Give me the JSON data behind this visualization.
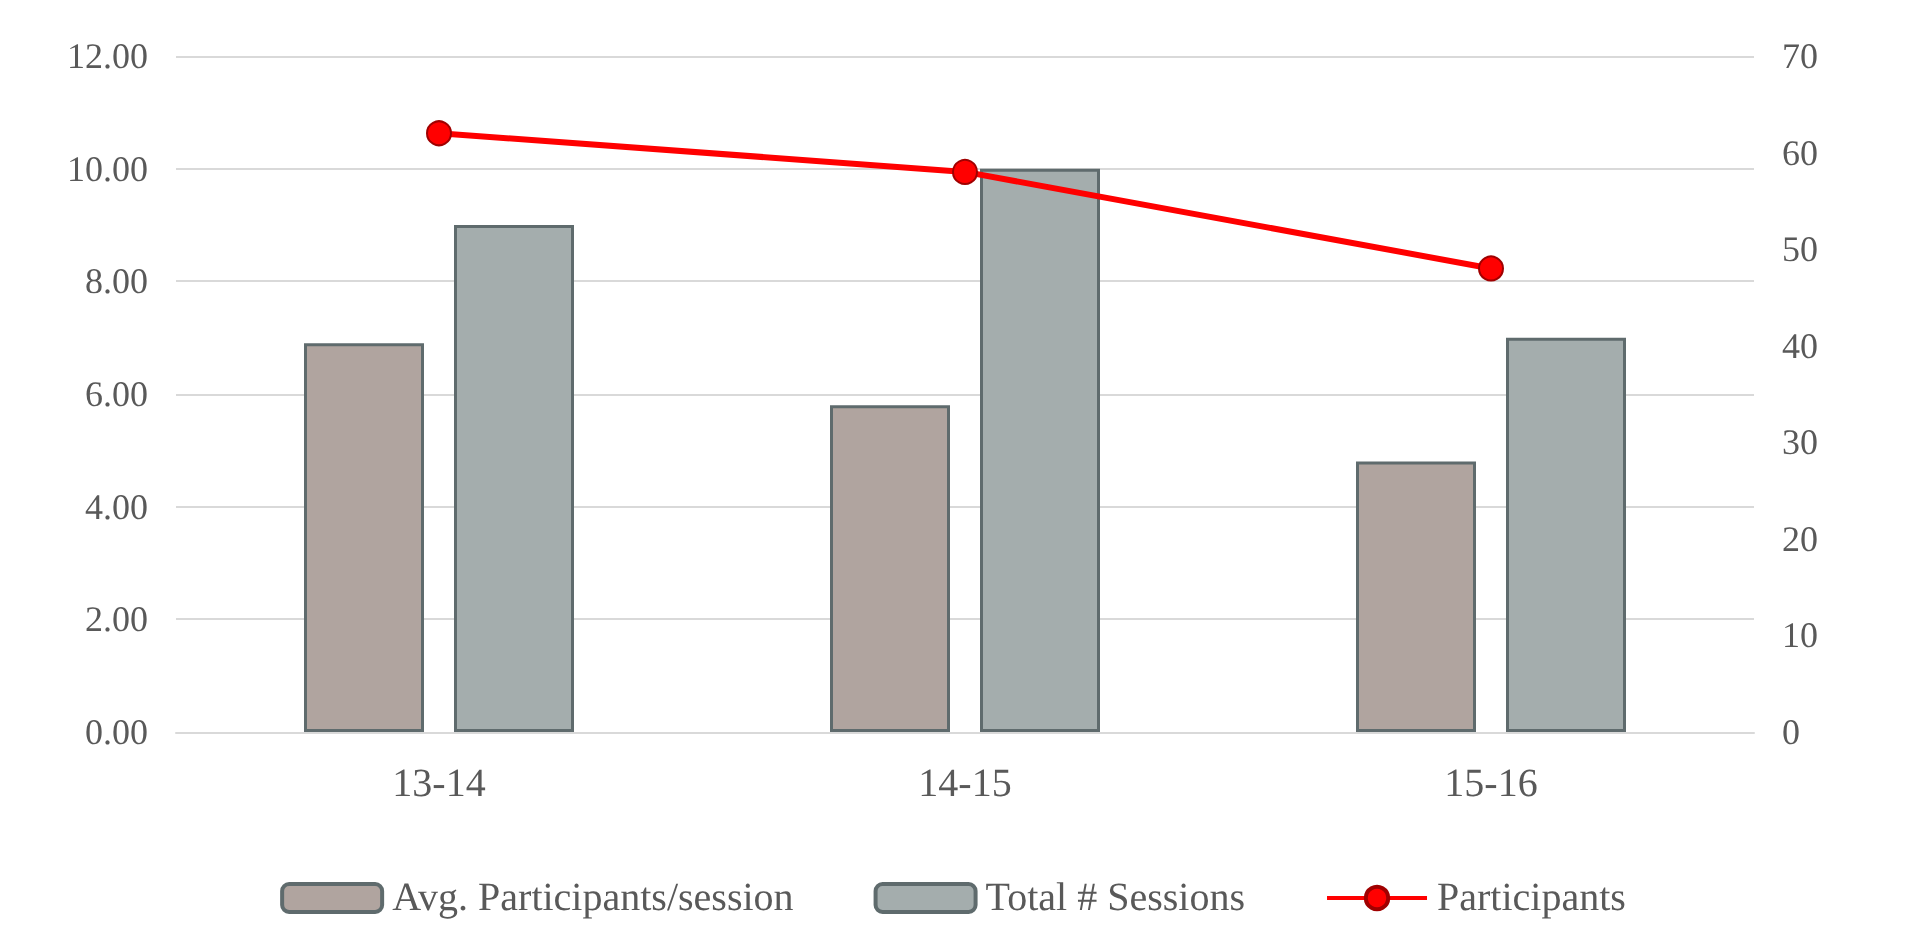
{
  "chart_data": {
    "type": "bar",
    "categories": [
      "13-14",
      "14-15",
      "15-16"
    ],
    "series": [
      {
        "name": "Avg. Participants/session",
        "color": "#b0a49f",
        "values": [
          6.9,
          5.8,
          4.8
        ]
      },
      {
        "name": "Total # Sessions",
        "color": "#a4adad",
        "values": [
          9,
          10,
          7
        ]
      },
      {
        "name": "Participants",
        "type": "line",
        "axis": "y2",
        "color": "#ff0000",
        "values": [
          62,
          58,
          48
        ]
      }
    ],
    "ylim": [
      0,
      12
    ],
    "yticks": [
      {
        "value": 0,
        "label": "0.00"
      },
      {
        "value": 2,
        "label": "2.00"
      },
      {
        "value": 4,
        "label": "4.00"
      },
      {
        "value": 6,
        "label": "6.00"
      },
      {
        "value": 8,
        "label": "8.00"
      },
      {
        "value": 10,
        "label": "10.00"
      },
      {
        "value": 12,
        "label": "12.00"
      }
    ],
    "y2lim": [
      0,
      70
    ],
    "y2ticks": [
      0,
      10,
      20,
      30,
      40,
      50,
      60,
      70
    ],
    "grid": "y",
    "legend": "bottom",
    "marker": "circle"
  }
}
